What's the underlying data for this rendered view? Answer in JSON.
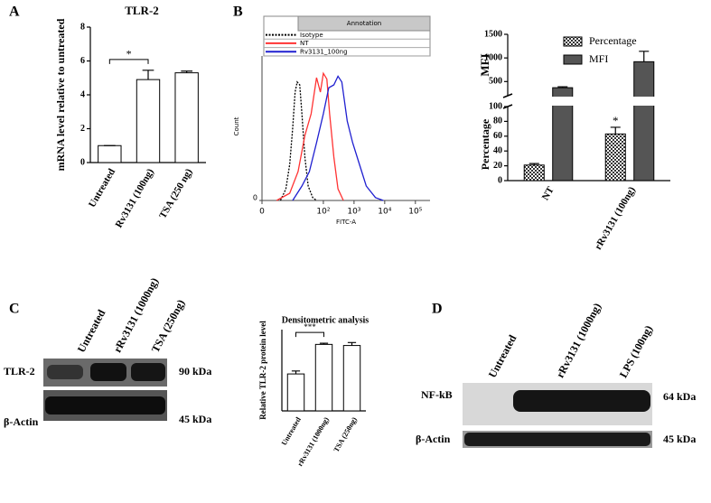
{
  "figure": {
    "panels": [
      "A",
      "B",
      "C",
      "D"
    ],
    "blot_c": {
      "lanes": [
        "Untreated",
        "rRv3131 (1000ng)",
        "TSA (250ng)"
      ],
      "rows": [
        "TLR-2",
        "β-Actin"
      ],
      "sizes": [
        "90 kDa",
        "45 kDa"
      ]
    },
    "blot_d": {
      "lanes": [
        "Untreated",
        "rRv3131 (1000ng)",
        "LPS (100ng)"
      ],
      "rows": [
        "NF-kB",
        "β-Actin"
      ],
      "sizes": [
        "64 kDa",
        "45 kDa"
      ]
    }
  },
  "chart_data": [
    {
      "type": "bar",
      "title": "TLR-2",
      "ylabel": "mRNA level relative to untreated",
      "categories": [
        "Untreated",
        "Rv3131 (100ng)",
        "TSA (250 ng)"
      ],
      "values": [
        1,
        4.9,
        5.3
      ],
      "errors": [
        0,
        0.55,
        0.1
      ],
      "color": "#ffffff",
      "ylim": [
        0,
        8
      ],
      "yticks": [
        0,
        2,
        4,
        6,
        8
      ],
      "annotation": "*"
    },
    {
      "type": "line",
      "ylabel": "Count",
      "xlabel": "FITC-A",
      "xscale": "log",
      "xlim": [
        1,
        300000
      ],
      "xticks": [
        {
          "value": 1,
          "label": "0"
        },
        {
          "value": 100,
          "label": "10²"
        },
        {
          "value": 1000,
          "label": "10³"
        },
        {
          "value": 10000,
          "label": "10⁴"
        },
        {
          "value": 100000,
          "label": "10⁵"
        }
      ],
      "ylim": [
        0,
        100
      ],
      "yticks": [
        0
      ],
      "legend_title": "Annotation",
      "series": [
        {
          "name": "Isotype",
          "color": "#000000",
          "dash": true,
          "x": [
            4,
            6,
            8,
            10,
            12,
            14,
            17,
            20,
            25,
            32,
            45,
            60
          ],
          "values": [
            0,
            8,
            25,
            50,
            75,
            82,
            80,
            60,
            30,
            10,
            2,
            0
          ]
        },
        {
          "name": "NT",
          "color": "#ff3333",
          "dash": false,
          "x": [
            3,
            8,
            15,
            25,
            40,
            60,
            80,
            100,
            130,
            160,
            220,
            300,
            450
          ],
          "values": [
            0,
            5,
            20,
            45,
            60,
            85,
            75,
            88,
            84,
            60,
            30,
            8,
            0
          ]
        },
        {
          "name": "Rv3131_100ng",
          "color": "#1f1fd0",
          "dash": false,
          "x": [
            10,
            20,
            35,
            60,
            100,
            150,
            220,
            300,
            400,
            600,
            900,
            1500,
            2500,
            5000,
            9000
          ],
          "values": [
            0,
            10,
            20,
            40,
            60,
            78,
            80,
            86,
            82,
            55,
            40,
            25,
            10,
            2,
            0
          ]
        }
      ]
    },
    {
      "type": "bar",
      "ylabel": "Percentage",
      "y2label": "MFI",
      "categories": [
        "NT",
        "rRv3131 (100ng)"
      ],
      "series": [
        {
          "name": "Percentage",
          "color": "#bbbbbb",
          "pattern": "hatch",
          "values": [
            21,
            63
          ],
          "errors": [
            2,
            9
          ]
        },
        {
          "name": "MFI",
          "color": "#555555",
          "axis": "y2",
          "values": [
            370,
            920
          ],
          "errors": [
            20,
            220
          ]
        }
      ],
      "ylim": [
        0,
        100
      ],
      "yticks": [
        0,
        20,
        40,
        60,
        80,
        100
      ],
      "y2lim": [
        200,
        1500
      ],
      "y2ticks": [
        500,
        1000,
        1500
      ],
      "legend": "top-right",
      "annotation": "*"
    },
    {
      "type": "bar",
      "title": "Densitometric analysis",
      "ylabel": "Relative TLR-2 protein level",
      "categories": [
        "Untreated",
        "rRv3131 (1000ng)",
        "TSA (250ng)"
      ],
      "values": [
        1.0,
        1.8,
        1.77
      ],
      "errors": [
        0.08,
        0.03,
        0.08
      ],
      "color": "#ffffff",
      "ylim": [
        0,
        2.2
      ],
      "annotation": "***"
    }
  ]
}
